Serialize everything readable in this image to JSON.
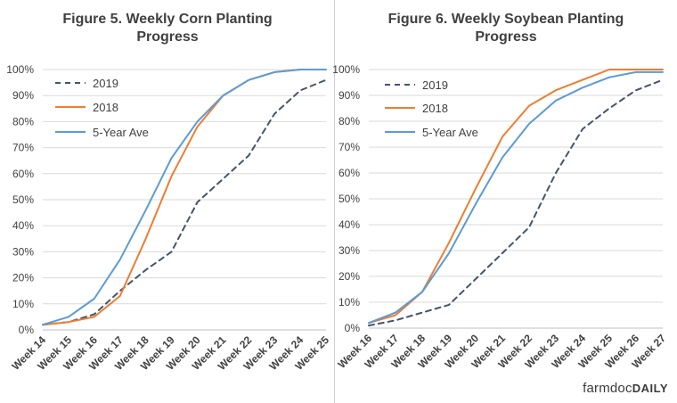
{
  "brand": {
    "part1": "farmdoc",
    "part2": "DAILY"
  },
  "chart_data": [
    {
      "type": "line",
      "title_lines": [
        "Figure 5. Weekly Corn Planting",
        "Progress"
      ],
      "categories": [
        "Week 14",
        "Week 15",
        "Week 16",
        "Week 17",
        "Week 18",
        "Week 19",
        "Week 20",
        "Week 21",
        "Week 22",
        "Week 23",
        "Week 24",
        "Week 25"
      ],
      "y_ticks": [
        "0%",
        "10%",
        "20%",
        "30%",
        "40%",
        "50%",
        "60%",
        "70%",
        "80%",
        "90%",
        "100%"
      ],
      "ylim": [
        0,
        100
      ],
      "grid": true,
      "legend_position": "top-left",
      "series": [
        {
          "name": "2019",
          "color": "#44546a",
          "dash": "dashed",
          "values": [
            2,
            3,
            6,
            15,
            23,
            30,
            49,
            58,
            67,
            83,
            92,
            96
          ]
        },
        {
          "name": "2018",
          "color": "#ed7d31",
          "dash": "solid",
          "values": [
            2,
            3,
            5,
            13,
            35,
            59,
            78,
            90,
            96,
            99,
            100,
            null
          ]
        },
        {
          "name": "5-Year Ave",
          "color": "#5b9bd5",
          "dash": "solid",
          "values": [
            2,
            5,
            12,
            27,
            46,
            66,
            80,
            90,
            96,
            99,
            100,
            100
          ]
        }
      ]
    },
    {
      "type": "line",
      "title_lines": [
        "Figure 6. Weekly Soybean Planting",
        "Progress"
      ],
      "categories": [
        "Week 16",
        "Week 17",
        "Week 18",
        "Week 19",
        "Week 20",
        "Week 21",
        "Week 22",
        "Week 23",
        "Week 24",
        "Week 25",
        "Week 26",
        "Week 27"
      ],
      "y_ticks": [
        "0%",
        "10%",
        "20%",
        "30%",
        "40%",
        "50%",
        "60%",
        "70%",
        "80%",
        "90%",
        "100%"
      ],
      "ylim": [
        0,
        100
      ],
      "grid": true,
      "legend_position": "top-left",
      "series": [
        {
          "name": "2019",
          "color": "#44546a",
          "dash": "dashed",
          "values": [
            1,
            3,
            6,
            9,
            19,
            29,
            39,
            60,
            77,
            85,
            92,
            96
          ]
        },
        {
          "name": "2018",
          "color": "#ed7d31",
          "dash": "solid",
          "values": [
            2,
            5,
            14,
            33,
            54,
            74,
            86,
            92,
            96,
            100,
            100,
            100
          ]
        },
        {
          "name": "5-Year Ave",
          "color": "#5b9bd5",
          "dash": "solid",
          "values": [
            2,
            6,
            14,
            29,
            48,
            66,
            79,
            88,
            93,
            97,
            99,
            99
          ]
        }
      ]
    }
  ]
}
